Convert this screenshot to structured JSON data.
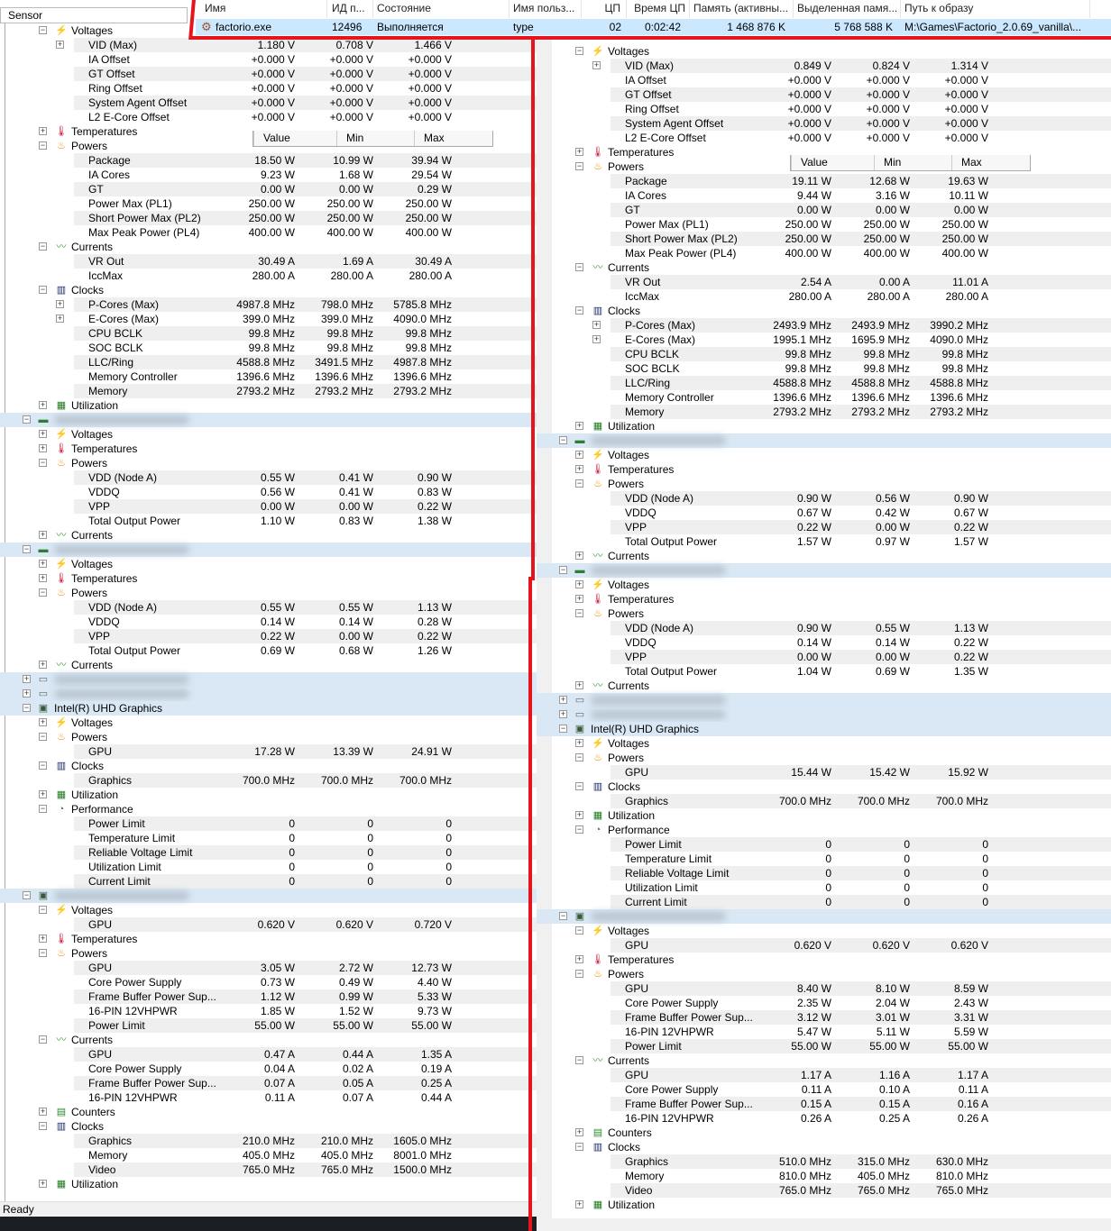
{
  "process_row": {
    "headers": [
      "Имя",
      "ИД п...",
      "Состояние",
      "Имя польз...",
      "ЦП",
      "Время ЦП",
      "Память (активны...",
      "Выделенная памя...",
      "Путь к образу"
    ],
    "icon": "gear-icon",
    "name": "factorio.exe",
    "pid": "12496",
    "status": "Выполняется",
    "user": "type",
    "cpu": "02",
    "cpu_time": "0:02:42",
    "memory_active": "1 468 876 K",
    "memory_committed": "5 768 588 K",
    "image_path": "M:\\Games\\Factorio_2.0.69_vanilla\\...",
    "highlight_color": "#e8141c"
  },
  "left_panel": {
    "header": "Sensor",
    "columns": [
      "Value",
      "Min",
      "Max"
    ],
    "status": "Ready",
    "rows": [
      [
        "g",
        "-",
        "voltage",
        "Voltages"
      ],
      [
        "s",
        "+",
        "VID (Max)",
        "1.180 V",
        "0.708 V",
        "1.466 V"
      ],
      [
        "s",
        "",
        "IA Offset",
        "+0.000 V",
        "+0.000 V",
        "+0.000 V"
      ],
      [
        "s",
        "",
        "GT Offset",
        "+0.000 V",
        "+0.000 V",
        "+0.000 V"
      ],
      [
        "s",
        "",
        "Ring Offset",
        "+0.000 V",
        "+0.000 V",
        "+0.000 V"
      ],
      [
        "s",
        "",
        "System Agent Offset",
        "+0.000 V",
        "+0.000 V",
        "+0.000 V"
      ],
      [
        "s",
        "",
        "L2 E-Core Offset",
        "+0.000 V",
        "+0.000 V",
        "+0.000 V"
      ],
      [
        "g",
        "+",
        "temperature",
        "Temperatures"
      ],
      [
        "g",
        "-",
        "power",
        "Powers"
      ],
      [
        "s",
        "",
        "Package",
        "18.50 W",
        "10.99 W",
        "39.94 W"
      ],
      [
        "s",
        "",
        "IA Cores",
        "9.23 W",
        "1.68 W",
        "29.54 W"
      ],
      [
        "s",
        "",
        "GT",
        "0.00 W",
        "0.00 W",
        "0.29 W"
      ],
      [
        "s",
        "",
        "Power Max (PL1)",
        "250.00 W",
        "250.00 W",
        "250.00 W"
      ],
      [
        "s",
        "",
        "Short Power Max (PL2)",
        "250.00 W",
        "250.00 W",
        "250.00 W"
      ],
      [
        "s",
        "",
        "Max Peak Power (PL4)",
        "400.00 W",
        "400.00 W",
        "400.00 W"
      ],
      [
        "g",
        "-",
        "current",
        "Currents"
      ],
      [
        "s",
        "",
        "VR Out",
        "30.49 A",
        "1.69 A",
        "30.49 A"
      ],
      [
        "s",
        "",
        "IccMax",
        "280.00 A",
        "280.00 A",
        "280.00 A"
      ],
      [
        "g",
        "-",
        "clock",
        "Clocks"
      ],
      [
        "s",
        "+",
        "P-Cores (Max)",
        "4987.8 MHz",
        "798.0 MHz",
        "5785.8 MHz"
      ],
      [
        "s",
        "+",
        "E-Cores (Max)",
        "399.0 MHz",
        "399.0 MHz",
        "4090.0 MHz"
      ],
      [
        "s",
        "",
        "CPU BCLK",
        "99.8 MHz",
        "99.8 MHz",
        "99.8 MHz"
      ],
      [
        "s",
        "",
        "SOC BCLK",
        "99.8 MHz",
        "99.8 MHz",
        "99.8 MHz"
      ],
      [
        "s",
        "",
        "LLC/Ring",
        "4588.8 MHz",
        "3491.5 MHz",
        "4987.8 MHz"
      ],
      [
        "s",
        "",
        "Memory Controller",
        "1396.6 MHz",
        "1396.6 MHz",
        "1396.6 MHz"
      ],
      [
        "s",
        "",
        "Memory",
        "2793.2 MHz",
        "2793.2 MHz",
        "2793.2 MHz"
      ],
      [
        "g",
        "+",
        "utilization",
        "Utilization"
      ],
      [
        "d",
        "-",
        "memory-module",
        ""
      ],
      [
        "g",
        "+",
        "voltage",
        "Voltages"
      ],
      [
        "g",
        "+",
        "temperature",
        "Temperatures"
      ],
      [
        "g",
        "-",
        "power",
        "Powers"
      ],
      [
        "s",
        "",
        "VDD (Node A)",
        "0.55 W",
        "0.41 W",
        "0.90 W"
      ],
      [
        "s",
        "",
        "VDDQ",
        "0.56 W",
        "0.41 W",
        "0.83 W"
      ],
      [
        "s",
        "",
        "VPP",
        "0.00 W",
        "0.00 W",
        "0.22 W"
      ],
      [
        "s",
        "",
        "Total Output Power",
        "1.10 W",
        "0.83 W",
        "1.38 W"
      ],
      [
        "g",
        "+",
        "current",
        "Currents"
      ],
      [
        "d",
        "-",
        "memory-module",
        ""
      ],
      [
        "g",
        "+",
        "voltage",
        "Voltages"
      ],
      [
        "g",
        "+",
        "temperature",
        "Temperatures"
      ],
      [
        "g",
        "-",
        "power",
        "Powers"
      ],
      [
        "s",
        "",
        "VDD (Node A)",
        "0.55 W",
        "0.55 W",
        "1.13 W"
      ],
      [
        "s",
        "",
        "VDDQ",
        "0.14 W",
        "0.14 W",
        "0.28 W"
      ],
      [
        "s",
        "",
        "VPP",
        "0.22 W",
        "0.00 W",
        "0.22 W"
      ],
      [
        "s",
        "",
        "Total Output Power",
        "0.69 W",
        "0.68 W",
        "1.26 W"
      ],
      [
        "g",
        "+",
        "current",
        "Currents"
      ],
      [
        "d",
        "+",
        "drive",
        ""
      ],
      [
        "d",
        "+",
        "drive",
        ""
      ],
      [
        "d",
        "-",
        "gpu",
        "Intel(R) UHD Graphics"
      ],
      [
        "g",
        "+",
        "voltage",
        "Voltages"
      ],
      [
        "g",
        "-",
        "power",
        "Powers"
      ],
      [
        "s",
        "",
        "GPU",
        "17.28 W",
        "13.39 W",
        "24.91 W"
      ],
      [
        "g",
        "-",
        "clock",
        "Clocks"
      ],
      [
        "s",
        "",
        "Graphics",
        "700.0 MHz",
        "700.0 MHz",
        "700.0 MHz"
      ],
      [
        "g",
        "+",
        "utilization",
        "Utilization"
      ],
      [
        "g",
        "-",
        "performance",
        "Performance"
      ],
      [
        "s",
        "",
        "Power Limit",
        "0",
        "0",
        "0"
      ],
      [
        "s",
        "",
        "Temperature Limit",
        "0",
        "0",
        "0"
      ],
      [
        "s",
        "",
        "Reliable Voltage Limit",
        "0",
        "0",
        "0"
      ],
      [
        "s",
        "",
        "Utilization Limit",
        "0",
        "0",
        "0"
      ],
      [
        "s",
        "",
        "Current Limit",
        "0",
        "0",
        "0"
      ],
      [
        "d",
        "-",
        "gpu",
        ""
      ],
      [
        "g",
        "-",
        "voltage",
        "Voltages"
      ],
      [
        "s",
        "",
        "GPU",
        "0.620 V",
        "0.620 V",
        "0.720 V"
      ],
      [
        "g",
        "+",
        "temperature",
        "Temperatures"
      ],
      [
        "g",
        "-",
        "power",
        "Powers"
      ],
      [
        "s",
        "",
        "GPU",
        "3.05 W",
        "2.72 W",
        "12.73 W"
      ],
      [
        "s",
        "",
        "Core Power Supply",
        "0.73 W",
        "0.49 W",
        "4.40 W"
      ],
      [
        "s",
        "",
        "Frame Buffer Power Sup...",
        "1.12 W",
        "0.99 W",
        "5.33 W"
      ],
      [
        "s",
        "",
        "16-PIN 12VHPWR",
        "1.85 W",
        "1.52 W",
        "9.73 W"
      ],
      [
        "s",
        "",
        "Power Limit",
        "55.00 W",
        "55.00 W",
        "55.00 W"
      ],
      [
        "g",
        "-",
        "current",
        "Currents"
      ],
      [
        "s",
        "",
        "GPU",
        "0.47 A",
        "0.44 A",
        "1.35 A"
      ],
      [
        "s",
        "",
        "Core Power Supply",
        "0.04 A",
        "0.02 A",
        "0.19 A"
      ],
      [
        "s",
        "",
        "Frame Buffer Power Sup...",
        "0.07 A",
        "0.05 A",
        "0.25 A"
      ],
      [
        "s",
        "",
        "16-PIN 12VHPWR",
        "0.11 A",
        "0.07 A",
        "0.44 A"
      ],
      [
        "g",
        "+",
        "counters",
        "Counters"
      ],
      [
        "g",
        "-",
        "clock",
        "Clocks"
      ],
      [
        "s",
        "",
        "Graphics",
        "210.0 MHz",
        "210.0 MHz",
        "1605.0 MHz"
      ],
      [
        "s",
        "",
        "Memory",
        "405.0 MHz",
        "405.0 MHz",
        "8001.0 MHz"
      ],
      [
        "s",
        "",
        "Video",
        "765.0 MHz",
        "765.0 MHz",
        "1500.0 MHz"
      ],
      [
        "g",
        "+",
        "utilization",
        "Utilization"
      ]
    ]
  },
  "right_panel": {
    "columns": [
      "Value",
      "Min",
      "Max"
    ],
    "rows": [
      [
        "g",
        "-",
        "voltage",
        "Voltages"
      ],
      [
        "s",
        "+",
        "VID (Max)",
        "0.849 V",
        "0.824 V",
        "1.314 V"
      ],
      [
        "s",
        "",
        "IA Offset",
        "+0.000 V",
        "+0.000 V",
        "+0.000 V"
      ],
      [
        "s",
        "",
        "GT Offset",
        "+0.000 V",
        "+0.000 V",
        "+0.000 V"
      ],
      [
        "s",
        "",
        "Ring Offset",
        "+0.000 V",
        "+0.000 V",
        "+0.000 V"
      ],
      [
        "s",
        "",
        "System Agent Offset",
        "+0.000 V",
        "+0.000 V",
        "+0.000 V"
      ],
      [
        "s",
        "",
        "L2 E-Core Offset",
        "+0.000 V",
        "+0.000 V",
        "+0.000 V"
      ],
      [
        "g",
        "+",
        "temperature",
        "Temperatures"
      ],
      [
        "g",
        "-",
        "power",
        "Powers"
      ],
      [
        "s",
        "",
        "Package",
        "19.11 W",
        "12.68 W",
        "19.63 W"
      ],
      [
        "s",
        "",
        "IA Cores",
        "9.44 W",
        "3.16 W",
        "10.11 W"
      ],
      [
        "s",
        "",
        "GT",
        "0.00 W",
        "0.00 W",
        "0.00 W"
      ],
      [
        "s",
        "",
        "Power Max (PL1)",
        "250.00 W",
        "250.00 W",
        "250.00 W"
      ],
      [
        "s",
        "",
        "Short Power Max (PL2)",
        "250.00 W",
        "250.00 W",
        "250.00 W"
      ],
      [
        "s",
        "",
        "Max Peak Power (PL4)",
        "400.00 W",
        "400.00 W",
        "400.00 W"
      ],
      [
        "g",
        "-",
        "current",
        "Currents"
      ],
      [
        "s",
        "",
        "VR Out",
        "2.54 A",
        "0.00 A",
        "11.01 A"
      ],
      [
        "s",
        "",
        "IccMax",
        "280.00 A",
        "280.00 A",
        "280.00 A"
      ],
      [
        "g",
        "-",
        "clock",
        "Clocks"
      ],
      [
        "s",
        "+",
        "P-Cores (Max)",
        "2493.9 MHz",
        "2493.9 MHz",
        "3990.2 MHz"
      ],
      [
        "s",
        "+",
        "E-Cores (Max)",
        "1995.1 MHz",
        "1695.9 MHz",
        "4090.0 MHz"
      ],
      [
        "s",
        "",
        "CPU BCLK",
        "99.8 MHz",
        "99.8 MHz",
        "99.8 MHz"
      ],
      [
        "s",
        "",
        "SOC BCLK",
        "99.8 MHz",
        "99.8 MHz",
        "99.8 MHz"
      ],
      [
        "s",
        "",
        "LLC/Ring",
        "4588.8 MHz",
        "4588.8 MHz",
        "4588.8 MHz"
      ],
      [
        "s",
        "",
        "Memory Controller",
        "1396.6 MHz",
        "1396.6 MHz",
        "1396.6 MHz"
      ],
      [
        "s",
        "",
        "Memory",
        "2793.2 MHz",
        "2793.2 MHz",
        "2793.2 MHz"
      ],
      [
        "g",
        "+",
        "utilization",
        "Utilization"
      ],
      [
        "d",
        "-",
        "memory-module",
        ""
      ],
      [
        "g",
        "+",
        "voltage",
        "Voltages"
      ],
      [
        "g",
        "+",
        "temperature",
        "Temperatures"
      ],
      [
        "g",
        "-",
        "power",
        "Powers"
      ],
      [
        "s",
        "",
        "VDD (Node A)",
        "0.90 W",
        "0.56 W",
        "0.90 W"
      ],
      [
        "s",
        "",
        "VDDQ",
        "0.67 W",
        "0.42 W",
        "0.67 W"
      ],
      [
        "s",
        "",
        "VPP",
        "0.22 W",
        "0.00 W",
        "0.22 W"
      ],
      [
        "s",
        "",
        "Total Output Power",
        "1.57 W",
        "0.97 W",
        "1.57 W"
      ],
      [
        "g",
        "+",
        "current",
        "Currents"
      ],
      [
        "d",
        "-",
        "memory-module",
        ""
      ],
      [
        "g",
        "+",
        "voltage",
        "Voltages"
      ],
      [
        "g",
        "+",
        "temperature",
        "Temperatures"
      ],
      [
        "g",
        "-",
        "power",
        "Powers"
      ],
      [
        "s",
        "",
        "VDD (Node A)",
        "0.90 W",
        "0.55 W",
        "1.13 W"
      ],
      [
        "s",
        "",
        "VDDQ",
        "0.14 W",
        "0.14 W",
        "0.22 W"
      ],
      [
        "s",
        "",
        "VPP",
        "0.00 W",
        "0.00 W",
        "0.22 W"
      ],
      [
        "s",
        "",
        "Total Output Power",
        "1.04 W",
        "0.69 W",
        "1.35 W"
      ],
      [
        "g",
        "+",
        "current",
        "Currents"
      ],
      [
        "d",
        "+",
        "drive",
        ""
      ],
      [
        "d",
        "+",
        "drive",
        ""
      ],
      [
        "d",
        "-",
        "gpu",
        "Intel(R) UHD Graphics"
      ],
      [
        "g",
        "+",
        "voltage",
        "Voltages"
      ],
      [
        "g",
        "-",
        "power",
        "Powers"
      ],
      [
        "s",
        "",
        "GPU",
        "15.44 W",
        "15.42 W",
        "15.92 W"
      ],
      [
        "g",
        "-",
        "clock",
        "Clocks"
      ],
      [
        "s",
        "",
        "Graphics",
        "700.0 MHz",
        "700.0 MHz",
        "700.0 MHz"
      ],
      [
        "g",
        "+",
        "utilization",
        "Utilization"
      ],
      [
        "g",
        "-",
        "performance",
        "Performance"
      ],
      [
        "s",
        "",
        "Power Limit",
        "0",
        "0",
        "0"
      ],
      [
        "s",
        "",
        "Temperature Limit",
        "0",
        "0",
        "0"
      ],
      [
        "s",
        "",
        "Reliable Voltage Limit",
        "0",
        "0",
        "0"
      ],
      [
        "s",
        "",
        "Utilization Limit",
        "0",
        "0",
        "0"
      ],
      [
        "s",
        "",
        "Current Limit",
        "0",
        "0",
        "0"
      ],
      [
        "d",
        "-",
        "gpu",
        ""
      ],
      [
        "g",
        "-",
        "voltage",
        "Voltages"
      ],
      [
        "s",
        "",
        "GPU",
        "0.620 V",
        "0.620 V",
        "0.620 V"
      ],
      [
        "g",
        "+",
        "temperature",
        "Temperatures"
      ],
      [
        "g",
        "-",
        "power",
        "Powers"
      ],
      [
        "s",
        "",
        "GPU",
        "8.40 W",
        "8.10 W",
        "8.59 W"
      ],
      [
        "s",
        "",
        "Core Power Supply",
        "2.35 W",
        "2.04 W",
        "2.43 W"
      ],
      [
        "s",
        "",
        "Frame Buffer Power Sup...",
        "3.12 W",
        "3.01 W",
        "3.31 W"
      ],
      [
        "s",
        "",
        "16-PIN 12VHPWR",
        "5.47 W",
        "5.11 W",
        "5.59 W"
      ],
      [
        "s",
        "",
        "Power Limit",
        "55.00 W",
        "55.00 W",
        "55.00 W"
      ],
      [
        "g",
        "-",
        "current",
        "Currents"
      ],
      [
        "s",
        "",
        "GPU",
        "1.17 A",
        "1.16 A",
        "1.17 A"
      ],
      [
        "s",
        "",
        "Core Power Supply",
        "0.11 A",
        "0.10 A",
        "0.11 A"
      ],
      [
        "s",
        "",
        "Frame Buffer Power Sup...",
        "0.15 A",
        "0.15 A",
        "0.16 A"
      ],
      [
        "s",
        "",
        "16-PIN 12VHPWR",
        "0.26 A",
        "0.25 A",
        "0.26 A"
      ],
      [
        "g",
        "+",
        "counters",
        "Counters"
      ],
      [
        "g",
        "-",
        "clock",
        "Clocks"
      ],
      [
        "s",
        "",
        "Graphics",
        "510.0 MHz",
        "315.0 MHz",
        "630.0 MHz"
      ],
      [
        "s",
        "",
        "Memory",
        "810.0 MHz",
        "405.0 MHz",
        "810.0 MHz"
      ],
      [
        "s",
        "",
        "Video",
        "765.0 MHz",
        "765.0 MHz",
        "765.0 MHz"
      ],
      [
        "g",
        "+",
        "utilization",
        "Utilization"
      ]
    ]
  }
}
